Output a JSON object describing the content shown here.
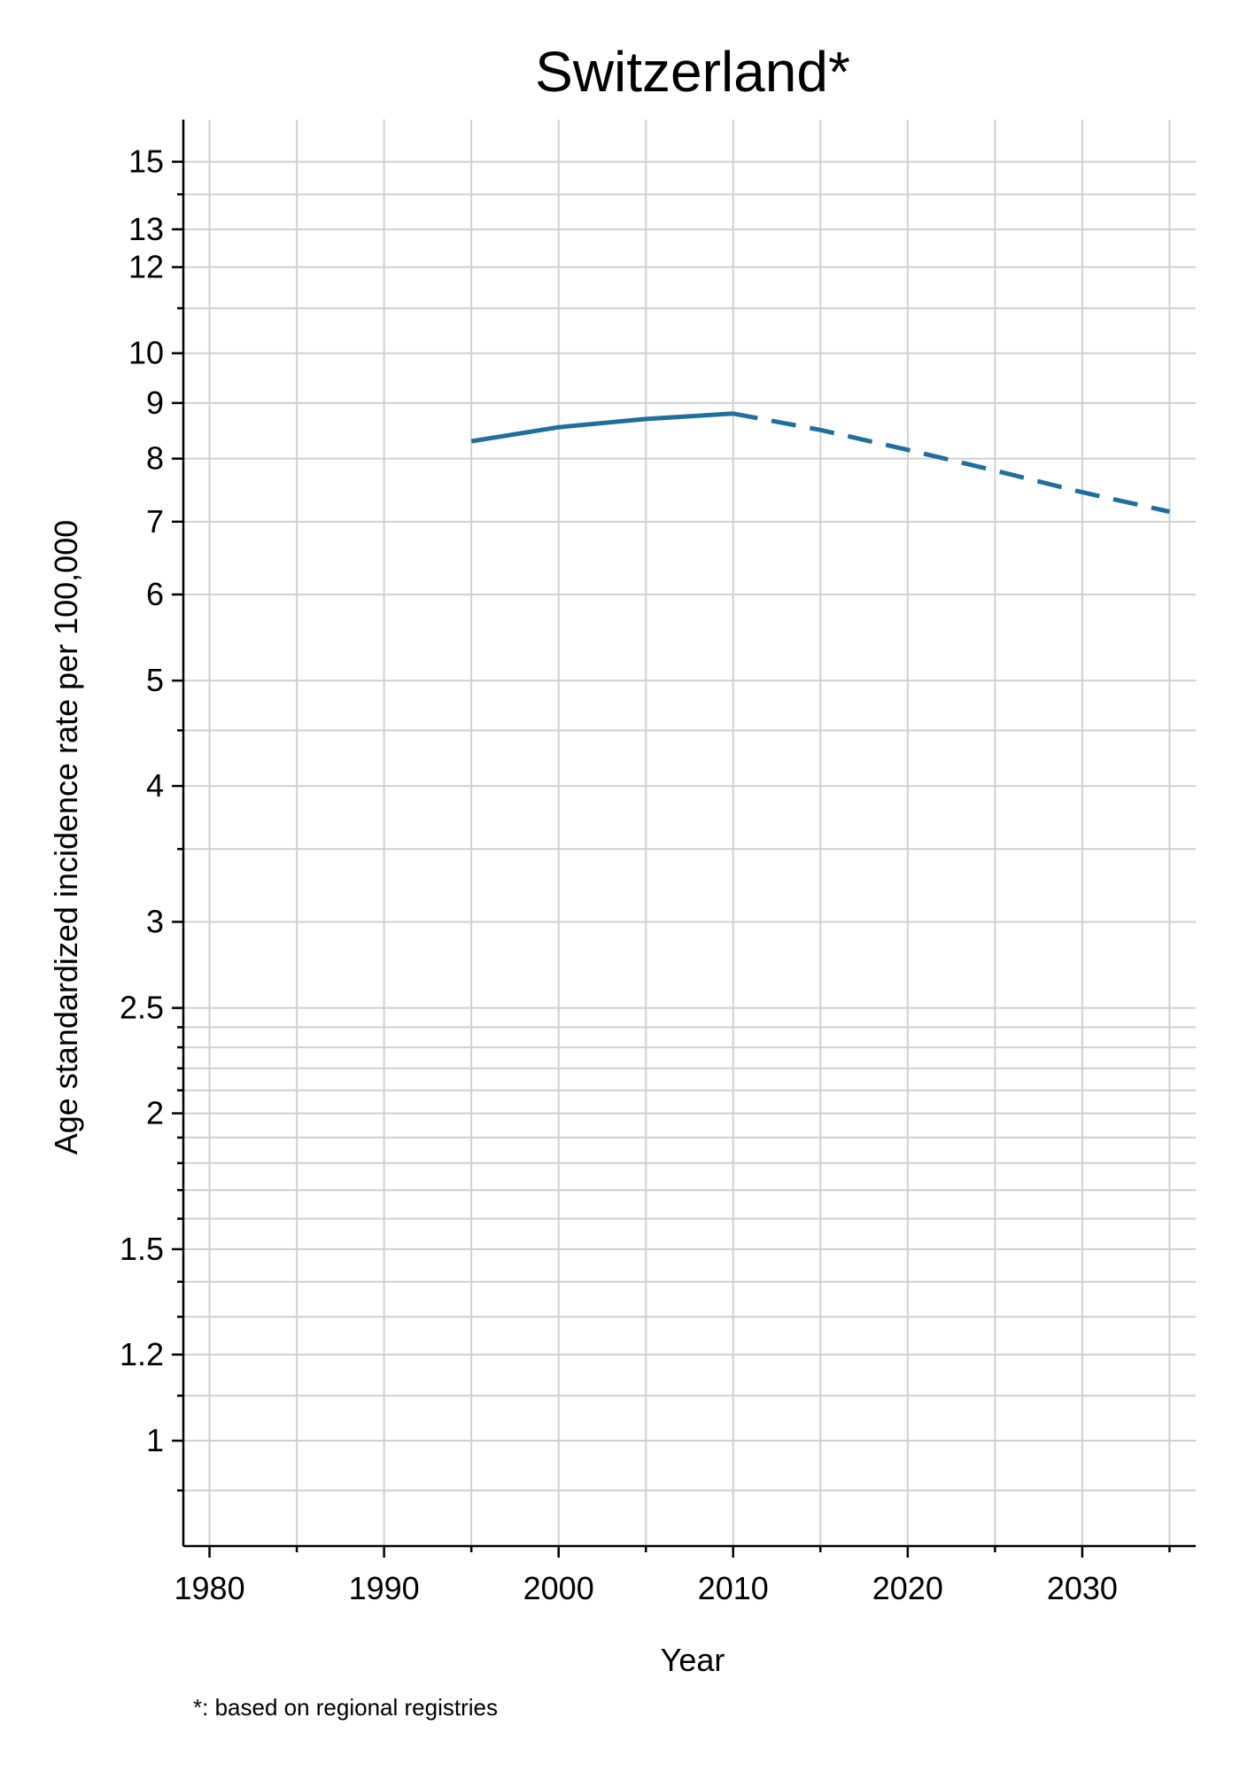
{
  "chart_data": {
    "type": "line",
    "title": "Switzerland*",
    "xlabel": "Year",
    "ylabel": "Age standardized incidence rate per 100,000",
    "footnote": "*: based on regional registries",
    "x_scale": "linear",
    "y_scale": "log",
    "xlim": [
      1978.5,
      2036.5
    ],
    "ylim": [
      0.8,
      16.4
    ],
    "x_ticks": [
      1980,
      1990,
      2000,
      2010,
      2020,
      2030
    ],
    "x_tick_labels": [
      "1980",
      "1990",
      "2000",
      "2010",
      "2020",
      "2030"
    ],
    "x_minor_ticks": [
      1985,
      1995,
      2005,
      2015,
      2025,
      2035
    ],
    "y_ticks": [
      1,
      1.2,
      1.5,
      2,
      2.5,
      3,
      4,
      5,
      6,
      7,
      8,
      9,
      10,
      12,
      13,
      15
    ],
    "y_tick_labels": [
      "1",
      "1.2",
      "1.5",
      "2",
      "2.5",
      "3",
      "4",
      "5",
      "6",
      "7",
      "8",
      "9",
      "10",
      "12",
      "13",
      "15"
    ],
    "y_minor_ticks": [
      0.9,
      1.1,
      1.3,
      1.4,
      1.6,
      1.7,
      1.8,
      1.9,
      2.1,
      2.2,
      2.3,
      2.4,
      3.5,
      4.5,
      11,
      14
    ],
    "grid": true,
    "series": [
      {
        "style": "solid",
        "color": "#1f6f9c",
        "x": [
          1995,
          2000,
          2005,
          2010
        ],
        "y": [
          8.3,
          8.55,
          8.7,
          8.8
        ]
      },
      {
        "style": "dashed",
        "color": "#1f6f9c",
        "x": [
          2010,
          2015,
          2020,
          2025,
          2030,
          2035
        ],
        "y": [
          8.8,
          8.5,
          8.15,
          7.8,
          7.45,
          7.15
        ]
      }
    ]
  }
}
